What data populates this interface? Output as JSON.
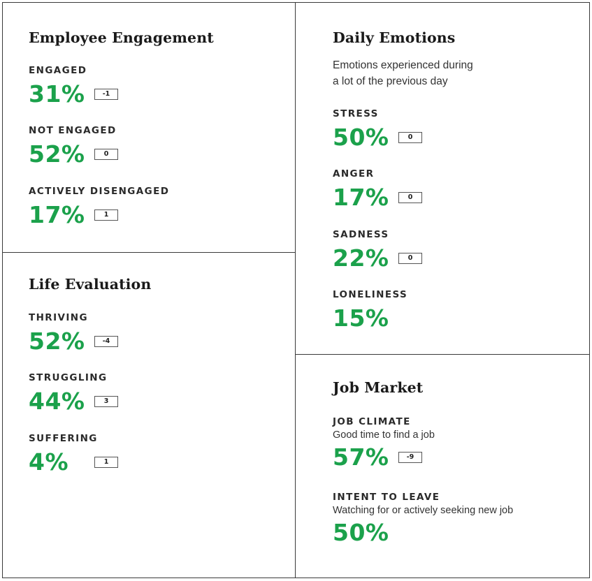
{
  "panels": {
    "employee_engagement": {
      "title": "Employee Engagement",
      "metrics": [
        {
          "label": "ENGAGED",
          "value": "31%",
          "change": "-1"
        },
        {
          "label": "NOT ENGAGED",
          "value": "52%",
          "change": "0"
        },
        {
          "label": "ACTIVELY DISENGAGED",
          "value": "17%",
          "change": "1"
        }
      ]
    },
    "life_evaluation": {
      "title": "Life Evaluation",
      "metrics": [
        {
          "label": "THRIVING",
          "value": "52%",
          "change": "-4"
        },
        {
          "label": "STRUGGLING",
          "value": "44%",
          "change": "3"
        },
        {
          "label": "SUFFERING",
          "value": "4%",
          "change": "1"
        }
      ]
    },
    "daily_emotions": {
      "title": "Daily Emotions",
      "description_line1": "Emotions experienced during",
      "description_line2": "a lot of the previous day",
      "metrics": [
        {
          "label": "STRESS",
          "value": "50%",
          "change": "0"
        },
        {
          "label": "ANGER",
          "value": "17%",
          "change": "0"
        },
        {
          "label": "SADNESS",
          "value": "22%",
          "change": "0"
        },
        {
          "label": "LONELINESS",
          "value": "15%"
        }
      ]
    },
    "job_market": {
      "title": "Job Market",
      "metrics": [
        {
          "label": "JOB CLIMATE",
          "sub": "Good time to find a job",
          "value": "57%",
          "change": "-9"
        },
        {
          "label": "INTENT TO LEAVE",
          "sub": "Watching for or actively seeking new job",
          "value": "50%"
        }
      ]
    }
  },
  "colors": {
    "value_green": "#1ba14b",
    "border": "#3a3a3a",
    "text": "#222222"
  }
}
